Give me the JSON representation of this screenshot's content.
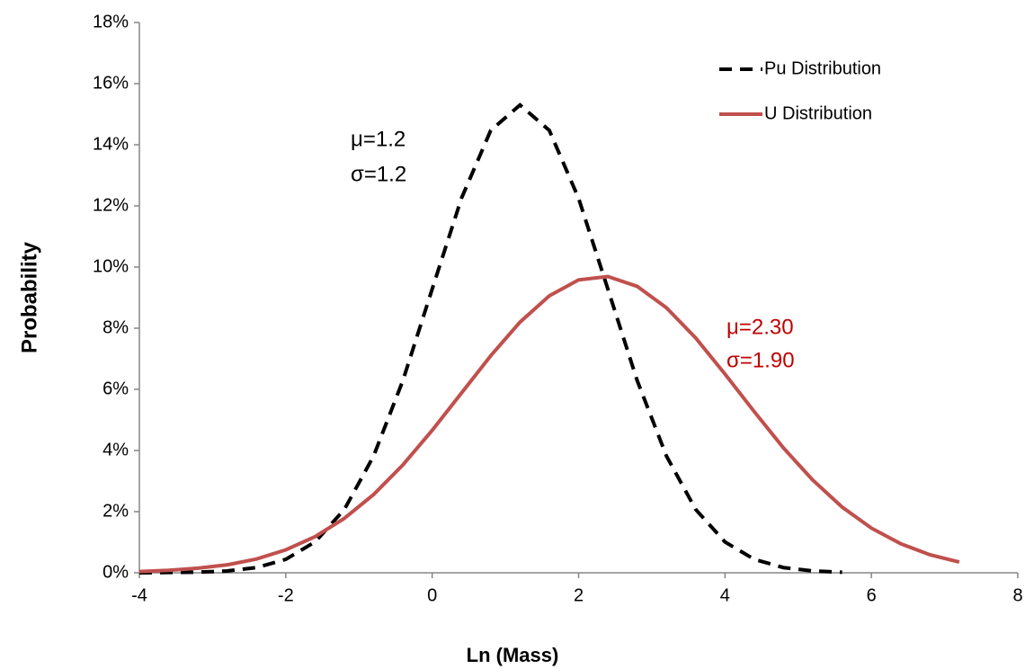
{
  "chart_data": {
    "type": "line",
    "x_label": "Ln (Mass)",
    "y_label": "Probability",
    "x": [
      -4,
      -3.6,
      -3.2,
      -2.8,
      -2.4,
      -2,
      -1.6,
      -1.2,
      -0.8,
      -0.4,
      0,
      0.4,
      0.8,
      1.2,
      1.6,
      2,
      2.4,
      2.8,
      3.2,
      3.6,
      4,
      4.4,
      4.8,
      5.2,
      5.6,
      6,
      6.4,
      6.8,
      7.2
    ],
    "series": [
      {
        "name": "Pu Distribution",
        "color": "#000000",
        "linestyle": "dashed",
        "values": [
          0,
          0.01,
          0.02,
          0.06,
          0.17,
          0.44,
          1.01,
          2.07,
          3.82,
          6.29,
          9.28,
          12.25,
          14.47,
          15.3,
          14.47,
          12.25,
          9.28,
          6.29,
          3.82,
          2.07,
          1.01,
          0.44,
          0.17,
          0.06,
          0.02,
          null,
          null,
          null,
          null
        ]
      },
      {
        "name": "U Distribution",
        "color": "#c0504d",
        "linestyle": "solid",
        "values": [
          0.04,
          0.08,
          0.15,
          0.26,
          0.45,
          0.75,
          1.18,
          1.78,
          2.56,
          3.53,
          4.66,
          5.88,
          7.1,
          8.2,
          9.06,
          9.58,
          9.69,
          9.37,
          8.67,
          7.68,
          6.5,
          5.27,
          4.08,
          3.03,
          2.15,
          1.46,
          0.95,
          0.59,
          0.35
        ]
      }
    ],
    "annotations": [
      {
        "text": "μ=1.2",
        "color": "#000000"
      },
      {
        "text": "σ=1.2",
        "color": "#000000"
      },
      {
        "text": "μ=2.30",
        "color": "#c00000"
      },
      {
        "text": "σ=1.90",
        "color": "#c00000"
      }
    ],
    "xlim": [
      -4,
      8
    ],
    "xticks": [
      -4,
      -2,
      0,
      2,
      4,
      6,
      8
    ],
    "ylim": [
      0,
      18
    ],
    "yticks": [
      {
        "value": 0,
        "label": "0%"
      },
      {
        "value": 2,
        "label": "2%"
      },
      {
        "value": 4,
        "label": "4%"
      },
      {
        "value": 6,
        "label": "6%"
      },
      {
        "value": 8,
        "label": "8%"
      },
      {
        "value": 10,
        "label": "10%"
      },
      {
        "value": 12,
        "label": "12%"
      },
      {
        "value": 14,
        "label": "14%"
      },
      {
        "value": 16,
        "label": "16%"
      },
      {
        "value": 18,
        "label": "18%"
      }
    ],
    "grid": false,
    "legend": "upper right"
  }
}
